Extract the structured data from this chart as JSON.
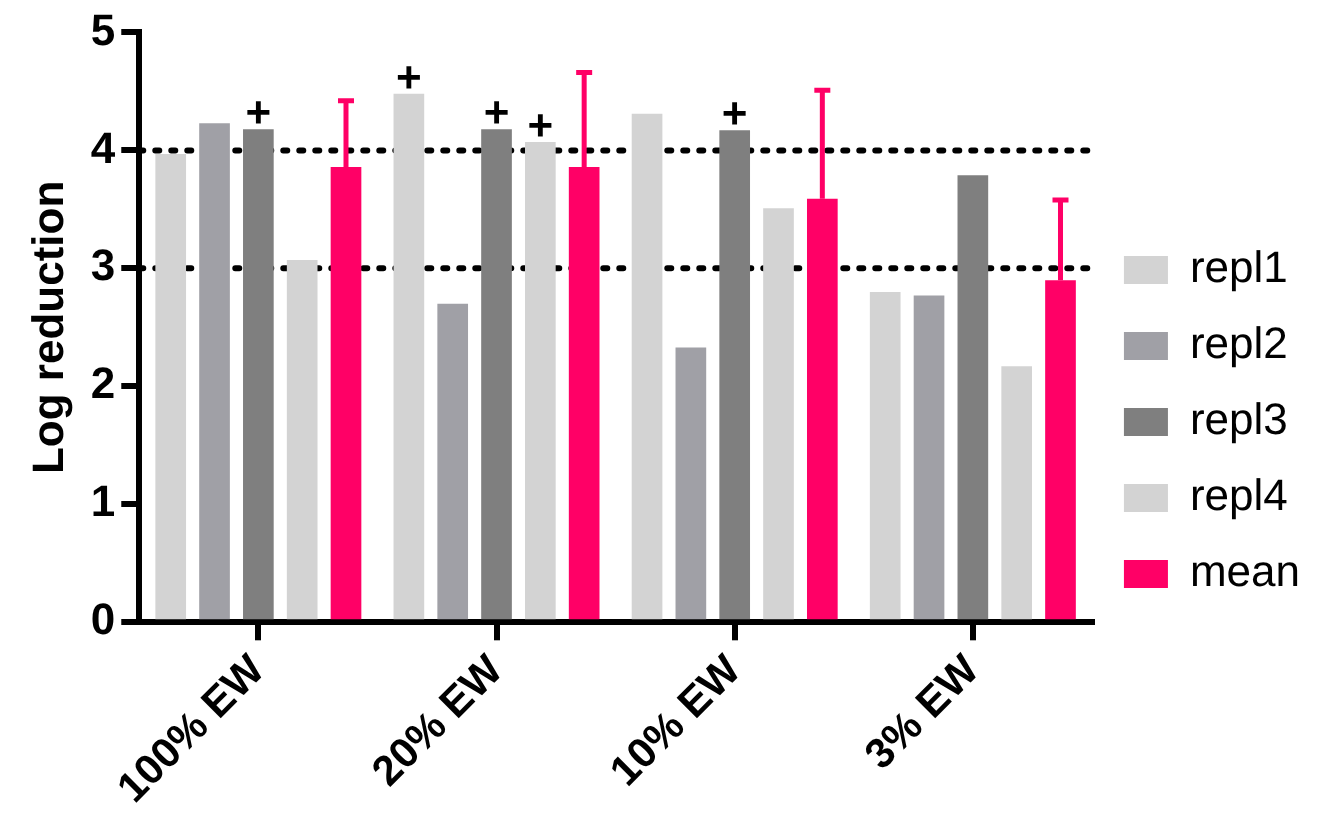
{
  "chart_data": {
    "type": "bar",
    "ylabel": "Log reduction",
    "categories": [
      "100% EW",
      "20% EW",
      "10% EW",
      "3% EW"
    ],
    "series": [
      {
        "name": "repl1",
        "color": "#d3d3d3",
        "values": [
          3.97,
          4.48,
          4.31,
          2.8
        ],
        "value_labels": [
          null,
          "+",
          null,
          null
        ]
      },
      {
        "name": "repl2",
        "color": "#a0a0a6",
        "values": [
          4.23,
          2.7,
          2.33,
          2.77
        ]
      },
      {
        "name": "repl3",
        "color": "#7f7f7f",
        "values": [
          4.18,
          4.18,
          4.17,
          3.79
        ],
        "value_labels": [
          "+",
          "+",
          "+",
          null
        ]
      },
      {
        "name": "repl4",
        "color": "#d3d3d3",
        "values": [
          3.07,
          4.07,
          3.51,
          2.17
        ],
        "value_labels": [
          null,
          "+",
          null,
          null
        ]
      },
      {
        "name": "mean",
        "color": "#ff0066",
        "values": [
          3.86,
          3.86,
          3.59,
          2.9
        ],
        "errors": [
          [
            3.86,
            4.42
          ],
          [
            3.86,
            4.66
          ],
          [
            3.59,
            4.51
          ],
          [
            2.9,
            3.58
          ]
        ]
      }
    ],
    "ylim": [
      0,
      5
    ],
    "yticks": [
      0,
      1,
      2,
      3,
      4,
      5
    ],
    "grid": false,
    "legend": "right",
    "ref_lines": [
      {
        "axis": "y",
        "value": 3,
        "line_style": "dotted"
      },
      {
        "axis": "y",
        "value": 4,
        "line_style": "dotted"
      }
    ]
  }
}
